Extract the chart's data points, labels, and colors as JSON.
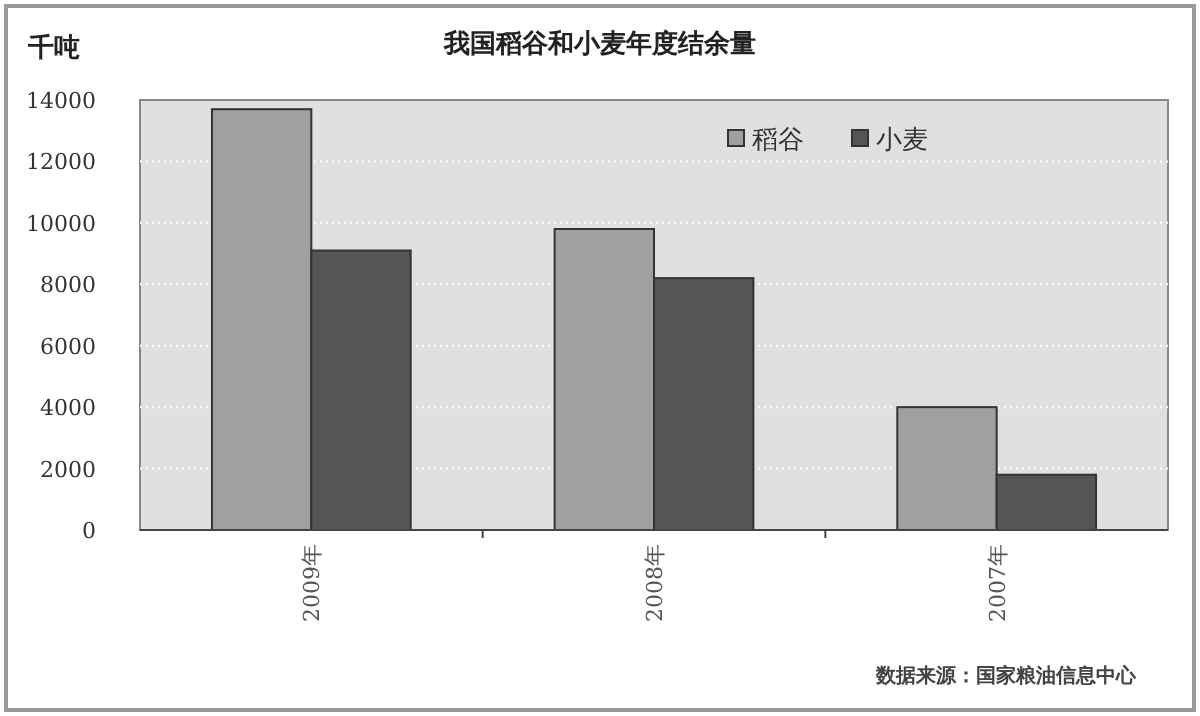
{
  "chart_data": {
    "type": "bar",
    "title": "我国稻谷和小麦年度结余量",
    "ylabel": "千吨",
    "categories": [
      "2009年",
      "2008年",
      "2007年"
    ],
    "series": [
      {
        "name": "稻谷",
        "color": "#a0a0a0",
        "values": [
          13700,
          9800,
          4000
        ]
      },
      {
        "name": "小麦",
        "color": "#555555",
        "values": [
          9100,
          8200,
          1800
        ]
      }
    ],
    "ylim": [
      0,
      14000
    ],
    "yticks": [
      0,
      2000,
      4000,
      6000,
      8000,
      10000,
      12000,
      14000
    ],
    "grid": "y",
    "legend": "top right",
    "annotations": [
      "数据来源：国家粮油信息中心"
    ]
  }
}
